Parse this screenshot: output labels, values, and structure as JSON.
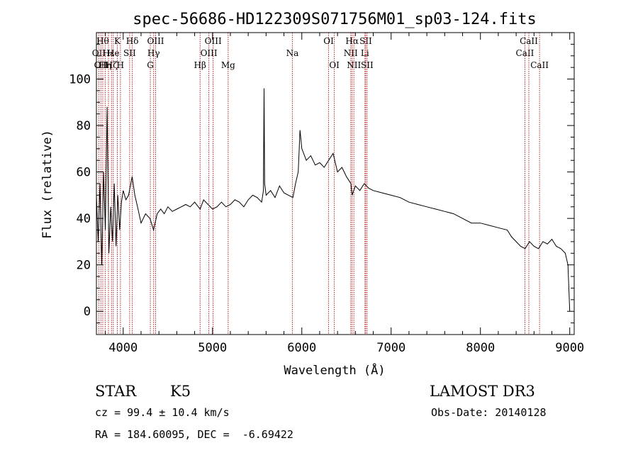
{
  "chart_data": {
    "type": "line",
    "title": "spec-56686-HD122309S071756M01_sp03-124.fits",
    "xlabel": "Wavelength (Å)",
    "ylabel": "Flux (relative)",
    "xlim": [
      3700,
      9050
    ],
    "ylim": [
      -10,
      120
    ],
    "x_ticks": [
      4000,
      5000,
      6000,
      7000,
      8000,
      9000
    ],
    "y_ticks": [
      0,
      20,
      40,
      60,
      80,
      100
    ],
    "grid": false,
    "line_color": "#000000",
    "marker_color": "#b22222",
    "series": [
      {
        "x": [
          3700,
          3720,
          3740,
          3760,
          3780,
          3800,
          3820,
          3840,
          3860,
          3880,
          3900,
          3920,
          3940,
          3960,
          3980,
          4000,
          4030,
          4060,
          4100,
          4130,
          4160,
          4200,
          4250,
          4300,
          4340,
          4380,
          4420,
          4460,
          4500,
          4550,
          4600,
          4650,
          4700,
          4750,
          4800,
          4861,
          4900,
          4950,
          5000,
          5050,
          5100,
          5150,
          5200,
          5250,
          5300,
          5350,
          5400,
          5450,
          5500,
          5550,
          5570,
          5577,
          5584,
          5600,
          5650,
          5700,
          5750,
          5800,
          5850,
          5900,
          5930,
          5960,
          5980,
          6000,
          6050,
          6100,
          6150,
          6200,
          6250,
          6300,
          6350,
          6400,
          6450,
          6500,
          6550,
          6563,
          6600,
          6650,
          6700,
          6750,
          6800,
          6900,
          7000,
          7100,
          7200,
          7300,
          7400,
          7500,
          7600,
          7700,
          7800,
          7900,
          8000,
          8100,
          8200,
          8300,
          8350,
          8400,
          8450,
          8500,
          8550,
          8600,
          8650,
          8700,
          8750,
          8800,
          8850,
          8900,
          8950,
          8980,
          9000
        ],
        "y": [
          50,
          30,
          55,
          20,
          60,
          35,
          88,
          25,
          45,
          30,
          55,
          28,
          50,
          35,
          47,
          52,
          48,
          50,
          58,
          50,
          45,
          38,
          42,
          40,
          35,
          42,
          44,
          42,
          45,
          43,
          44,
          45,
          46,
          45,
          47,
          44,
          48,
          46,
          44,
          45,
          47,
          45,
          46,
          48,
          47,
          45,
          48,
          50,
          49,
          47,
          52,
          96,
          55,
          50,
          52,
          49,
          54,
          51,
          50,
          49,
          55,
          60,
          78,
          70,
          65,
          67,
          63,
          64,
          62,
          65,
          68,
          60,
          62,
          58,
          55,
          50,
          54,
          52,
          55,
          53,
          52,
          51,
          50,
          49,
          47,
          46,
          45,
          44,
          43,
          42,
          40,
          38,
          38,
          37,
          36,
          35,
          32,
          30,
          28,
          27,
          30,
          28,
          27,
          30,
          29,
          31,
          28,
          27,
          25,
          20,
          0
        ]
      }
    ],
    "line_markers": [
      {
        "w": 3727,
        "label": "OII",
        "row": 2
      },
      {
        "w": 3750,
        "label": "OII",
        "row": 3
      },
      {
        "w": 3771,
        "label": "Hθ",
        "row": 1
      },
      {
        "w": 3798,
        "label": "Hη",
        "row": 3
      },
      {
        "w": 3835,
        "label": "Hε",
        "row": 2
      },
      {
        "w": 3869,
        "label": "Hζ",
        "row": 3
      },
      {
        "w": 3889,
        "label": "He",
        "row": 2
      },
      {
        "w": 3934,
        "label": "K",
        "row": 1
      },
      {
        "w": 3969,
        "label": "H",
        "row": 3
      },
      {
        "w": 4072,
        "label": "SII",
        "row": 2
      },
      {
        "w": 4102,
        "label": "Hδ",
        "row": 1
      },
      {
        "w": 4304,
        "label": "G",
        "row": 3
      },
      {
        "w": 4341,
        "label": "Hγ",
        "row": 2
      },
      {
        "w": 4363,
        "label": "OIII",
        "row": 1
      },
      {
        "w": 4861,
        "label": "Hβ",
        "row": 3
      },
      {
        "w": 4959,
        "label": "OIII",
        "row": 2
      },
      {
        "w": 5007,
        "label": "OIII",
        "row": 1
      },
      {
        "w": 5175,
        "label": "Mg",
        "row": 3
      },
      {
        "w": 5894,
        "label": "Na",
        "row": 2
      },
      {
        "w": 6300,
        "label": "OI",
        "row": 1
      },
      {
        "w": 6364,
        "label": "OI",
        "row": 3
      },
      {
        "w": 6548,
        "label": "NII",
        "row": 2
      },
      {
        "w": 6563,
        "label": "Hα",
        "row": 1
      },
      {
        "w": 6583,
        "label": "NII",
        "row": 3
      },
      {
        "w": 6707,
        "label": "Li",
        "row": 2
      },
      {
        "w": 6716,
        "label": "SII",
        "row": 1
      },
      {
        "w": 6731,
        "label": "SII",
        "row": 3
      },
      {
        "w": 8498,
        "label": "CaII",
        "row": 2
      },
      {
        "w": 8542,
        "label": "CaII",
        "row": 1
      },
      {
        "w": 8662,
        "label": "CaII",
        "row": 3
      }
    ]
  },
  "footer": {
    "object_class": "STAR",
    "subclass": "K5",
    "survey": "LAMOST DR3",
    "cz": "cz = 99.4 ± 10.4 km/s",
    "obs_date": "Obs-Date: 20140128",
    "coords": "RA = 184.60095, DEC =  -6.69422"
  }
}
